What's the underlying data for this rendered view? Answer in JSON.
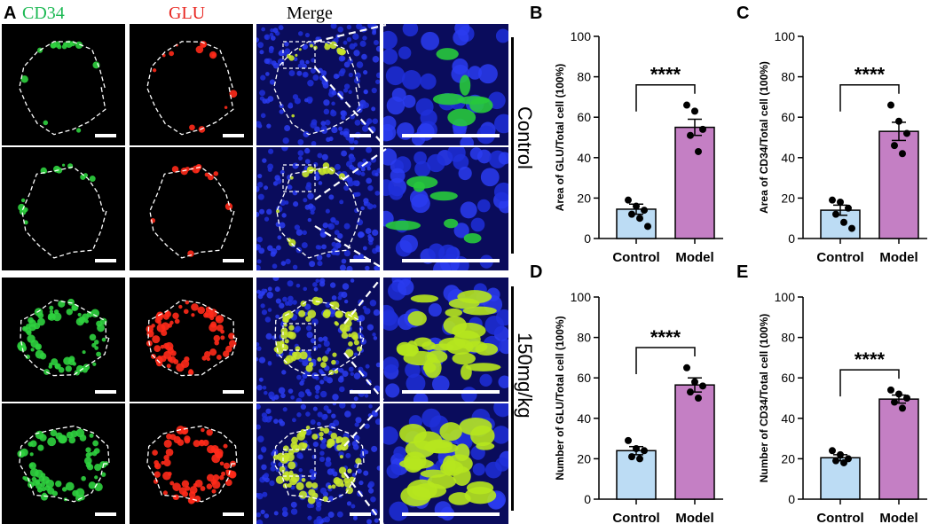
{
  "panel_a": {
    "letter": "A",
    "column_headers": [
      {
        "text": "CD34",
        "color": "#1db954"
      },
      {
        "text": "GLU",
        "color": "#e8251f"
      },
      {
        "text": "Merge",
        "color": "#000000"
      }
    ],
    "groups": [
      "Control",
      "150mg/kg"
    ]
  },
  "chart_data": [
    {
      "letter": "B",
      "type": "bar",
      "categories": [
        "Control",
        "Model"
      ],
      "values": [
        14.5,
        55
      ],
      "points": [
        [
          19,
          16,
          14,
          12,
          10,
          6
        ],
        [
          66,
          63,
          54,
          51,
          43
        ]
      ],
      "errors": [
        2.5,
        4
      ],
      "ylabel": "Area of GLU/Total cell (100%)",
      "ylim": [
        0,
        100
      ],
      "yticks": [
        0,
        20,
        40,
        60,
        80,
        100
      ],
      "significance": "****",
      "colors": [
        "#bcdcf4",
        "#c47fc4"
      ]
    },
    {
      "letter": "C",
      "type": "bar",
      "categories": [
        "Control",
        "Model"
      ],
      "values": [
        14,
        53
      ],
      "points": [
        [
          19,
          18,
          15,
          12,
          8,
          5
        ],
        [
          66,
          58,
          52,
          46,
          42
        ]
      ],
      "errors": [
        2.5,
        4.5
      ],
      "ylabel": "Area of CD34/Total cell (100%)",
      "ylim": [
        0,
        100
      ],
      "yticks": [
        0,
        20,
        40,
        60,
        80,
        100
      ],
      "significance": "****",
      "colors": [
        "#bcdcf4",
        "#c47fc4"
      ]
    },
    {
      "letter": "D",
      "type": "bar",
      "categories": [
        "Control",
        "Model"
      ],
      "values": [
        24,
        56.5
      ],
      "points": [
        [
          29,
          25,
          24,
          21,
          20
        ],
        [
          65,
          58,
          56,
          53,
          50
        ]
      ],
      "errors": [
        2,
        3.5
      ],
      "ylabel": "Number of GLU/Total cell (100%)",
      "ylim": [
        0,
        100
      ],
      "yticks": [
        0,
        20,
        40,
        60,
        80,
        100
      ],
      "significance": "****",
      "colors": [
        "#bcdcf4",
        "#c47fc4"
      ]
    },
    {
      "letter": "E",
      "type": "bar",
      "categories": [
        "Control",
        "Model"
      ],
      "values": [
        20.5,
        49.5
      ],
      "points": [
        [
          24,
          22,
          20,
          19,
          18
        ],
        [
          54,
          52,
          50,
          48,
          45
        ]
      ],
      "errors": [
        1.5,
        2
      ],
      "ylabel": "Number of CD34/Total cell (100%)",
      "ylim": [
        0,
        100
      ],
      "yticks": [
        0,
        20,
        40,
        60,
        80,
        100
      ],
      "significance": "****",
      "colors": [
        "#bcdcf4",
        "#c47fc4"
      ]
    }
  ]
}
